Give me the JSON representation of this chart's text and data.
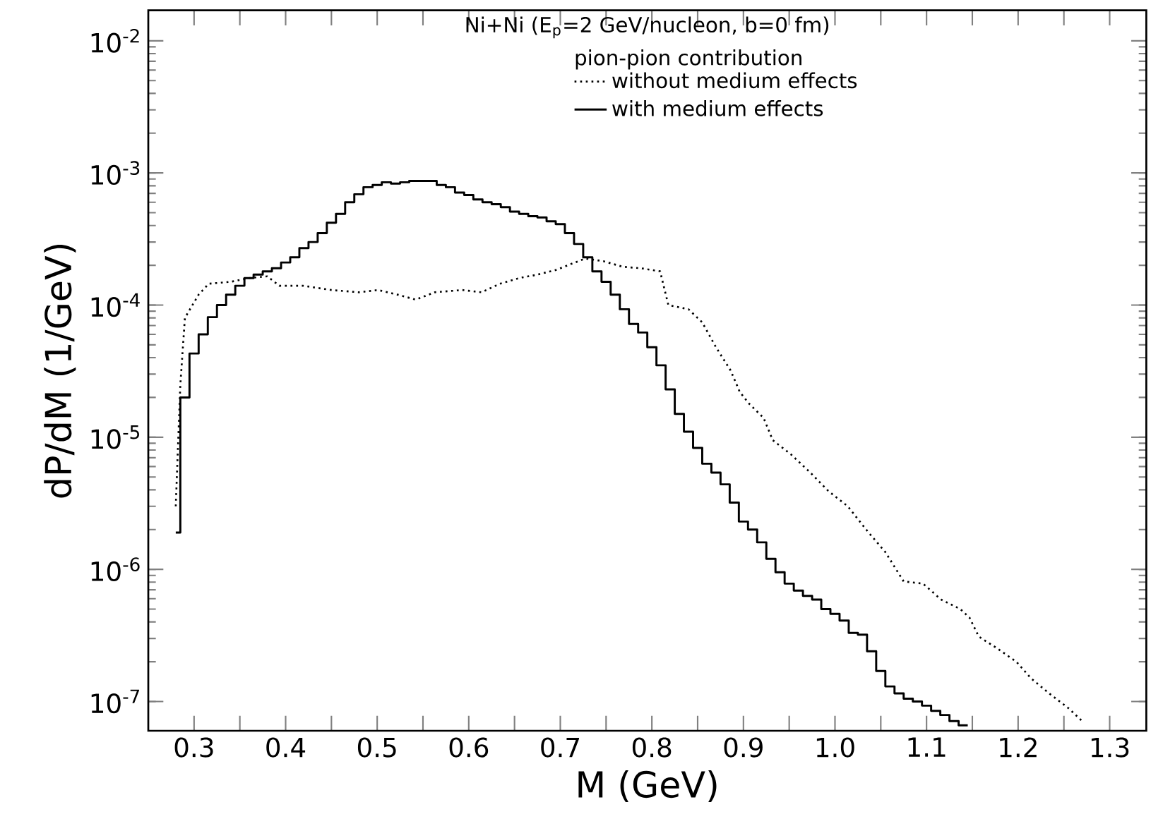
{
  "chart_data": {
    "type": "step",
    "title": "Ni+Ni (E$_{p}$=2 GeV/nucleon, b=0 fm)",
    "subtitle": "pion-pion contribution",
    "xlabel": "M (GeV)",
    "ylabel": "dP/dM (1/GeV)",
    "log": "y",
    "legend": "top",
    "xlim": [
      0.25,
      1.34
    ],
    "ylim": [
      6e-08,
      0.017
    ],
    "xticks": [
      0.3,
      {
        "value": 0.35,
        "label": null
      },
      0.4,
      {
        "value": 0.45,
        "label": null
      },
      0.5,
      {
        "value": 0.55,
        "label": null
      },
      0.6,
      {
        "value": 0.65,
        "label": null
      },
      0.7,
      {
        "value": 0.75,
        "label": null
      },
      0.8,
      {
        "value": 0.85,
        "label": null
      },
      0.9,
      {
        "value": 0.95,
        "label": null
      },
      {
        "value": 1.0,
        "label": "1.0"
      },
      {
        "value": 1.05,
        "label": null
      },
      1.1,
      {
        "value": 1.15,
        "label": null
      },
      1.2,
      {
        "value": 1.25,
        "label": null
      },
      1.3
    ],
    "yticks": [
      {
        "value": 1e-07,
        "label": "10$^{-7}$"
      },
      {
        "value": 1e-06,
        "label": "10$^{-6}$"
      },
      {
        "value": 1e-05,
        "label": "10$^{-5}$"
      },
      {
        "value": 0.0001,
        "label": "10$^{-4}$"
      },
      {
        "value": 0.001,
        "label": "10$^{-3}$"
      },
      {
        "value": 0.01,
        "label": "10$^{-2}$"
      }
    ],
    "series": [
      {
        "name": "without medium effects",
        "type": "line",
        "line_style": "dotted",
        "color": "#000000",
        "x": [
          0.28,
          0.285,
          0.29,
          0.305,
          0.316,
          0.34,
          0.36,
          0.38,
          0.393,
          0.419,
          0.45,
          0.48,
          0.501,
          0.522,
          0.542,
          0.563,
          0.593,
          0.614,
          0.634,
          0.655,
          0.675,
          0.696,
          0.716,
          0.727,
          0.747,
          0.768,
          0.788,
          0.809,
          0.818,
          0.84,
          0.855,
          0.87,
          0.886,
          0.896,
          0.906,
          0.922,
          0.932,
          0.952,
          0.973,
          0.993,
          1.014,
          1.034,
          1.055,
          1.075,
          1.096,
          1.116,
          1.137,
          1.147,
          1.157,
          1.178,
          1.198,
          1.214,
          1.234,
          1.255,
          1.27
        ],
        "values": [
          3e-06,
          2.5e-05,
          8e-05,
          0.00012,
          0.000145,
          0.00015,
          0.00016,
          0.000165,
          0.00014,
          0.00014,
          0.00013,
          0.000125,
          0.00013,
          0.00012,
          0.00011,
          0.000125,
          0.00013,
          0.000125,
          0.000145,
          0.00016,
          0.00017,
          0.000185,
          0.00021,
          0.000225,
          0.000215,
          0.000195,
          0.00019,
          0.00018,
          0.0001,
          9.3e-05,
          7.4e-05,
          4.8e-05,
          3.2e-05,
          2.2e-05,
          1.8e-05,
          1.4e-05,
          9.5e-06,
          7.4e-06,
          5.4e-06,
          3.9e-06,
          3e-06,
          2e-06,
          1.35e-06,
          8.1e-07,
          7.8e-07,
          5.9e-07,
          5e-07,
          4.3e-07,
          3.1e-07,
          2.5e-07,
          2e-07,
          1.5e-07,
          1.15e-07,
          8.9e-08,
          7.1e-08
        ]
      },
      {
        "name": "with medium effects",
        "line_style": "solid",
        "color": "#000000",
        "x": [
          0.28,
          0.285,
          0.295,
          0.305,
          0.315,
          0.325,
          0.335,
          0.345,
          0.355,
          0.365,
          0.375,
          0.385,
          0.395,
          0.405,
          0.415,
          0.425,
          0.435,
          0.445,
          0.455,
          0.465,
          0.475,
          0.485,
          0.495,
          0.505,
          0.515,
          0.525,
          0.535,
          0.545,
          0.555,
          0.565,
          0.575,
          0.585,
          0.595,
          0.605,
          0.615,
          0.625,
          0.635,
          0.645,
          0.655,
          0.665,
          0.675,
          0.685,
          0.695,
          0.705,
          0.715,
          0.725,
          0.735,
          0.745,
          0.755,
          0.765,
          0.775,
          0.785,
          0.795,
          0.805,
          0.815,
          0.825,
          0.835,
          0.845,
          0.855,
          0.865,
          0.875,
          0.885,
          0.895,
          0.905,
          0.915,
          0.925,
          0.935,
          0.945,
          0.955,
          0.965,
          0.975,
          0.985,
          0.995,
          1.005,
          1.015,
          1.025,
          1.035,
          1.045,
          1.055,
          1.065,
          1.075,
          1.085,
          1.095,
          1.105,
          1.115,
          1.125,
          1.135,
          1.145
        ],
        "values": [
          1.9e-06,
          2e-05,
          4.3e-05,
          6e-05,
          8.1e-05,
          0.0001,
          0.00012,
          0.00014,
          0.00016,
          0.00017,
          0.00018,
          0.00019,
          0.00021,
          0.00023,
          0.00027,
          0.0003,
          0.00035,
          0.00042,
          0.00049,
          0.0006,
          0.00069,
          0.00078,
          0.00081,
          0.00085,
          0.00083,
          0.00085,
          0.00087,
          0.00087,
          0.00087,
          0.00081,
          0.00078,
          0.00071,
          0.00068,
          0.00063,
          0.0006,
          0.00058,
          0.00055,
          0.00051,
          0.00049,
          0.00047,
          0.00046,
          0.00043,
          0.00041,
          0.00035,
          0.00029,
          0.00023,
          0.00018,
          0.00015,
          0.00012,
          9.3e-05,
          7.2e-05,
          6.2e-05,
          4.8e-05,
          3.5e-05,
          2.3e-05,
          1.5e-05,
          1.1e-05,
          8.3e-06,
          6.3e-06,
          5.4e-06,
          4.4e-06,
          3.2e-06,
          2.3e-06,
          2e-06,
          1.6e-06,
          1.2e-06,
          9.5e-07,
          7.8e-07,
          6.9e-07,
          6.3e-07,
          5.9e-07,
          5e-07,
          4.6e-07,
          4.1e-07,
          3.3e-07,
          3.2e-07,
          2.4e-07,
          1.7e-07,
          1.3e-07,
          1.15e-07,
          1.05e-07,
          1e-07,
          9.3e-08,
          8.5e-08,
          7.9e-08,
          7.1e-08,
          6.6e-08,
          6.6e-08
        ]
      }
    ]
  }
}
